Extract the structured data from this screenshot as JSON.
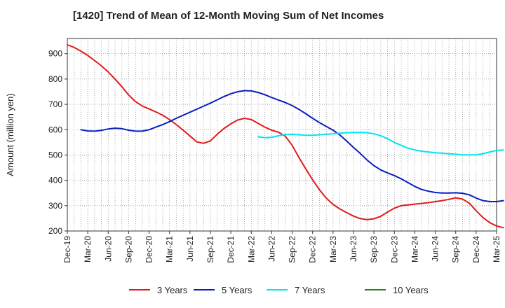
{
  "chart_data": {
    "type": "line",
    "title": "[1420]  Trend of Mean of 12-Month Moving Sum of Net Incomes",
    "ylabel": "Amount (million yen)",
    "xlabel": "",
    "ylim": [
      200,
      960
    ],
    "yticks": [
      200,
      300,
      400,
      500,
      600,
      700,
      800,
      900
    ],
    "x_ticks": [
      "Dec-19",
      "Mar-20",
      "Jun-20",
      "Sep-20",
      "Dec-20",
      "Mar-21",
      "Jun-21",
      "Sep-21",
      "Dec-21",
      "Mar-22",
      "Jun-22",
      "Sep-22",
      "Dec-22",
      "Mar-23",
      "Jun-23",
      "Sep-23",
      "Dec-23",
      "Mar-24",
      "Jun-24",
      "Sep-24",
      "Dec-24",
      "Mar-25"
    ],
    "grid": "dotted",
    "legend_position": "bottom",
    "series": [
      {
        "name": "3 Years",
        "color": "#e31a1c",
        "values": [
          935,
          925,
          910,
          893,
          873,
          852,
          828,
          800,
          770,
          737,
          711,
          693,
          682,
          670,
          657,
          640,
          620,
          598,
          575,
          552,
          546,
          556,
          582,
          605,
          623,
          638,
          645,
          640,
          625,
          610,
          598,
          590,
          574,
          538,
          490,
          445,
          402,
          363,
          330,
          305,
          287,
          272,
          259,
          249,
          245,
          248,
          258,
          275,
          290,
          300,
          303,
          306,
          309,
          312,
          316,
          320,
          325,
          331,
          326,
          310,
          280,
          253,
          233,
          220,
          213
        ]
      },
      {
        "name": "5 Years",
        "color": "#0a1fbf",
        "values": [
          null,
          null,
          600,
          595,
          594,
          597,
          603,
          606,
          604,
          598,
          594,
          594,
          600,
          610,
          620,
          632,
          645,
          657,
          669,
          681,
          693,
          705,
          718,
          731,
          742,
          750,
          754,
          753,
          747,
          738,
          727,
          717,
          707,
          695,
          680,
          663,
          645,
          628,
          613,
          598,
          579,
          555,
          530,
          506,
          480,
          458,
          441,
          429,
          419,
          406,
          391,
          376,
          364,
          357,
          352,
          350,
          350,
          351,
          349,
          343,
          330,
          320,
          316,
          316,
          320
        ]
      },
      {
        "name": "7 Years",
        "color": "#00e5ee",
        "values": [
          null,
          null,
          null,
          null,
          null,
          null,
          null,
          null,
          null,
          null,
          null,
          null,
          null,
          null,
          null,
          null,
          null,
          null,
          null,
          null,
          null,
          null,
          null,
          null,
          null,
          null,
          null,
          null,
          572,
          568,
          570,
          576,
          581,
          582,
          580,
          578,
          578,
          580,
          582,
          584,
          586,
          588,
          589,
          589,
          588,
          584,
          576,
          564,
          550,
          538,
          527,
          520,
          515,
          512,
          509,
          507,
          505,
          503,
          501,
          500,
          501,
          505,
          512,
          518,
          520
        ]
      },
      {
        "name": "10 Years",
        "color": "#1a8a1a",
        "values": []
      }
    ]
  }
}
